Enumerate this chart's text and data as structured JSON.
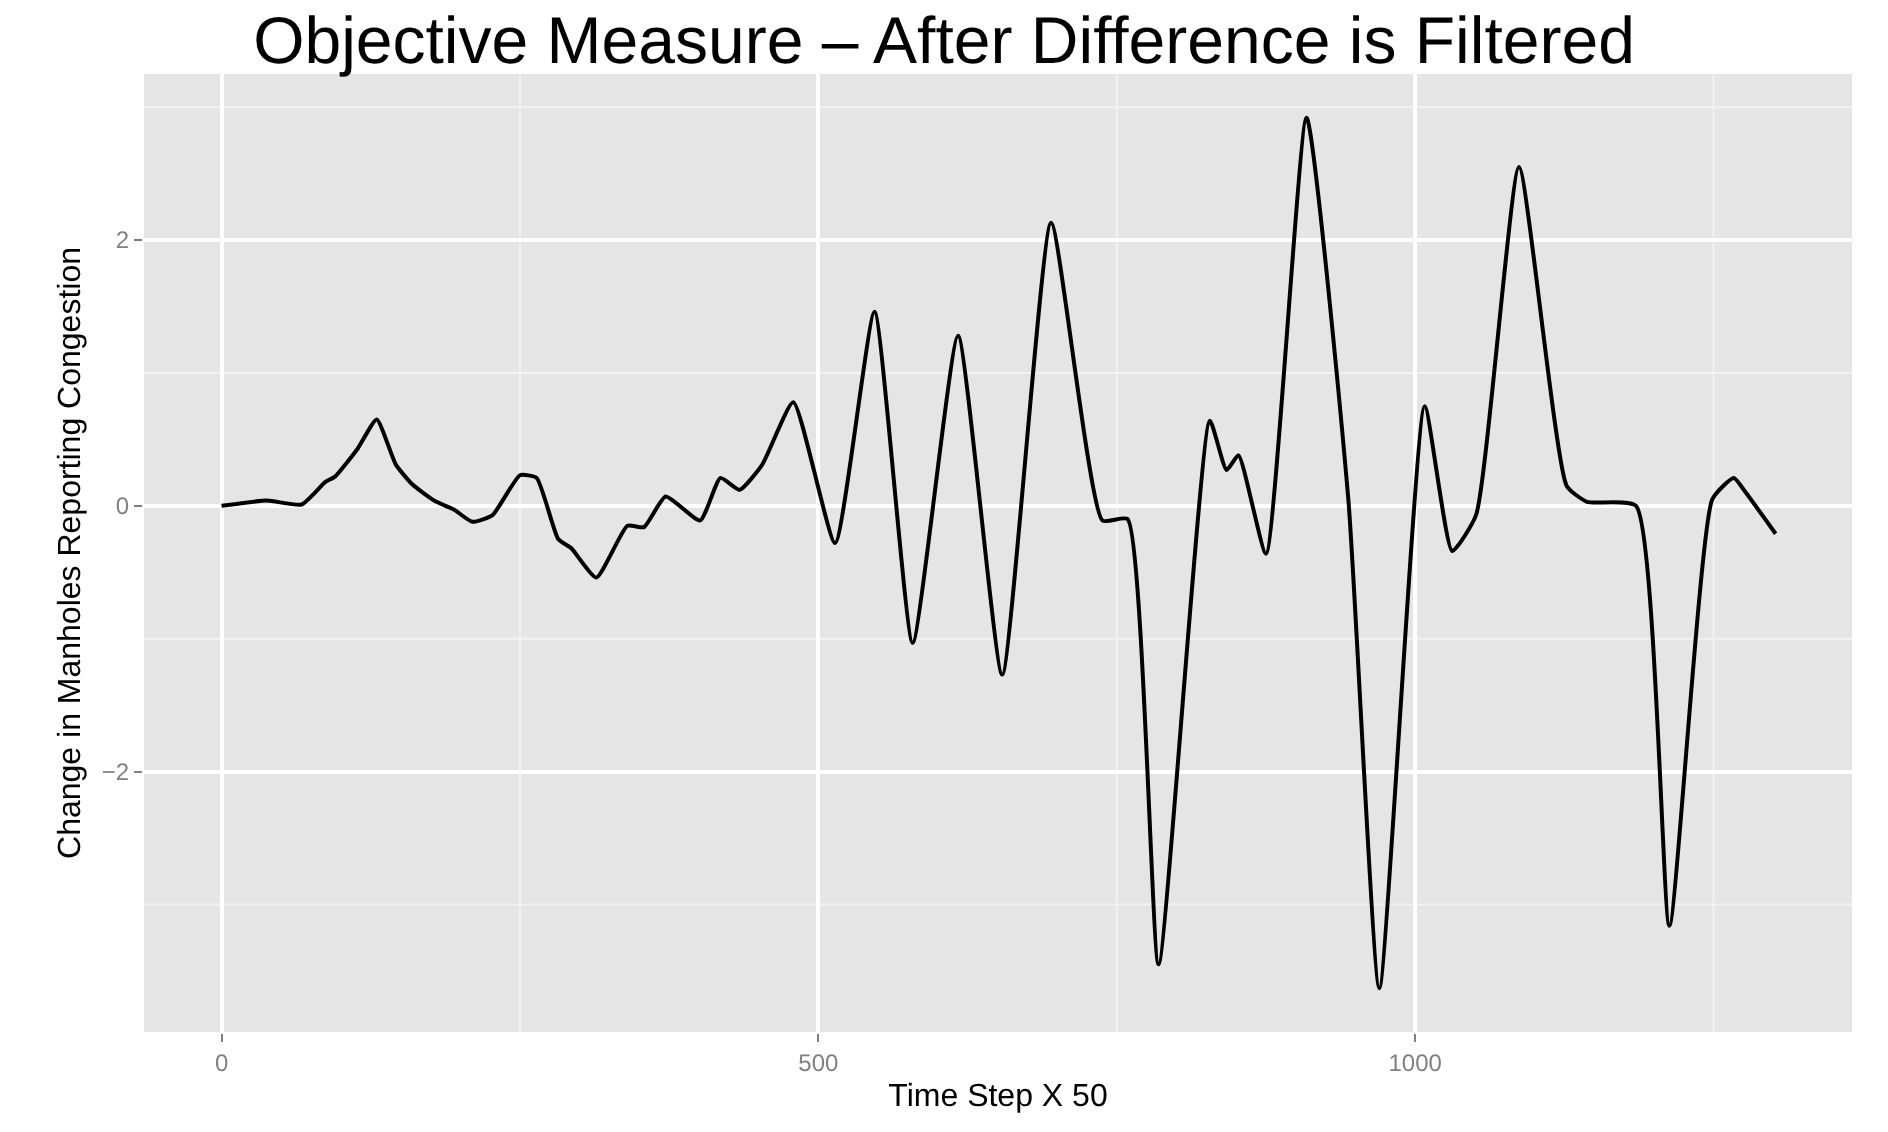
{
  "chart_data": {
    "type": "line",
    "title": "Objective Measure – After Difference is Filtered",
    "xlabel": "Time Step X 50",
    "ylabel": "Change in Manholes Reporting Congestion",
    "x": [
      0,
      38,
      67,
      87,
      95,
      114,
      130,
      146,
      160,
      178,
      195,
      210,
      227,
      250,
      264,
      282,
      293,
      314,
      340,
      354,
      372,
      401,
      418,
      434,
      453,
      479,
      514,
      547,
      579,
      617,
      654,
      695,
      738,
      759,
      785,
      828,
      842,
      852,
      875,
      909,
      944,
      970,
      1008,
      1031,
      1051,
      1087,
      1127,
      1144,
      1185,
      1213,
      1249,
      1267,
      1277,
      1302
    ],
    "series": [
      {
        "color": "#000000",
        "values": [
          0,
          0.04,
          0.01,
          0.18,
          0.22,
          0.43,
          0.65,
          0.31,
          0.16,
          0.04,
          -0.03,
          -0.12,
          -0.07,
          0.23,
          0.21,
          -0.25,
          -0.32,
          -0.54,
          -0.15,
          -0.16,
          0.07,
          -0.11,
          0.21,
          0.12,
          0.31,
          0.78,
          -0.28,
          1.46,
          -1.03,
          1.28,
          -1.27,
          2.13,
          -0.11,
          -0.1,
          -3.45,
          0.64,
          0.27,
          0.38,
          -0.36,
          2.92,
          0.05,
          -3.63,
          0.75,
          -0.34,
          -0.07,
          2.55,
          0.15,
          0.03,
          0,
          -3.16,
          0.05,
          0.21,
          0.1,
          -0.21
        ]
      }
    ],
    "xlim": [
      -65,
      1366
    ],
    "ylim": [
      -3.96,
      3.25
    ],
    "xticks": [
      0,
      {
        "value": 250,
        "label": null
      },
      500,
      {
        "value": 750,
        "label": null
      },
      1000,
      {
        "value": 1250,
        "label": null
      }
    ],
    "yticks": [
      {
        "value": -3,
        "label": null
      },
      {
        "value": -2,
        "label": "−2"
      },
      {
        "value": -1,
        "label": null
      },
      0,
      {
        "value": 1,
        "label": null
      },
      2,
      {
        "value": 3,
        "label": null
      }
    ],
    "grid": true
  }
}
